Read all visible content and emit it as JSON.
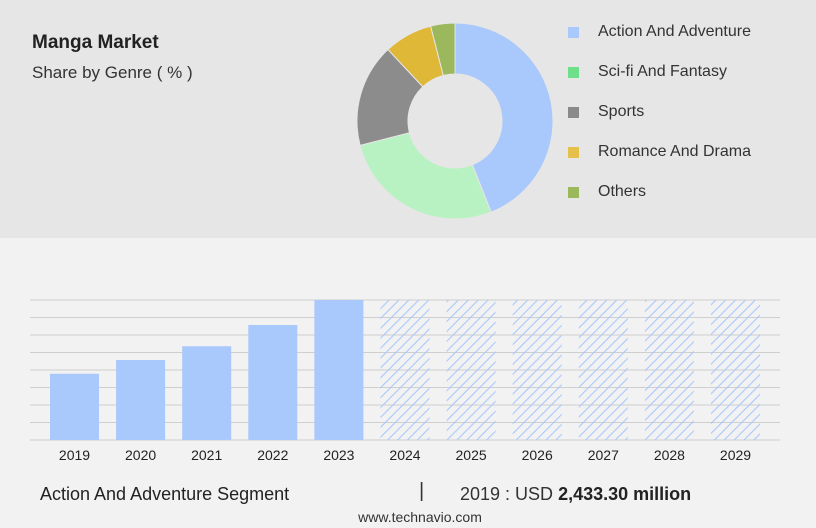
{
  "header": {
    "title": "Manga Market",
    "subtitle": "Share by Genre ( % )"
  },
  "legend": [
    {
      "label": "Action And Adventure",
      "color": "#a9c8fc"
    },
    {
      "label": "Sci-fi And Fantasy",
      "color": "#6fe08a"
    },
    {
      "label": "Sports",
      "color": "#8a8a8a"
    },
    {
      "label": "Romance And Drama",
      "color": "#e5c04a"
    },
    {
      "label": "Others",
      "color": "#9bb85c"
    }
  ],
  "chart_data": [
    {
      "type": "pie",
      "donut": true,
      "categories": [
        "Action And Adventure",
        "Sci-fi And Fantasy",
        "Sports",
        "Romance And Drama",
        "Others"
      ],
      "values": [
        44,
        27,
        17,
        8,
        4
      ],
      "colors": [
        "#a9c8fc",
        "#b9f2c2",
        "#8c8c8c",
        "#e0b838",
        "#9bb85c"
      ]
    },
    {
      "type": "bar",
      "categories": [
        "2019",
        "2020",
        "2021",
        "2022",
        "2023",
        "2024",
        "2025",
        "2026",
        "2027",
        "2028",
        "2029"
      ],
      "values": [
        53,
        64,
        75,
        92,
        112,
        112,
        112,
        112,
        112,
        112,
        112
      ],
      "forecast": [
        false,
        false,
        false,
        false,
        false,
        true,
        true,
        true,
        true,
        true,
        true
      ],
      "color": "#a9c8fc",
      "grid": true
    }
  ],
  "footer": {
    "segment": "Action And Adventure Segment",
    "separator": "|",
    "year_label": "2019 : USD",
    "value": "2,433.30 million",
    "source": "www.technavio.com"
  }
}
